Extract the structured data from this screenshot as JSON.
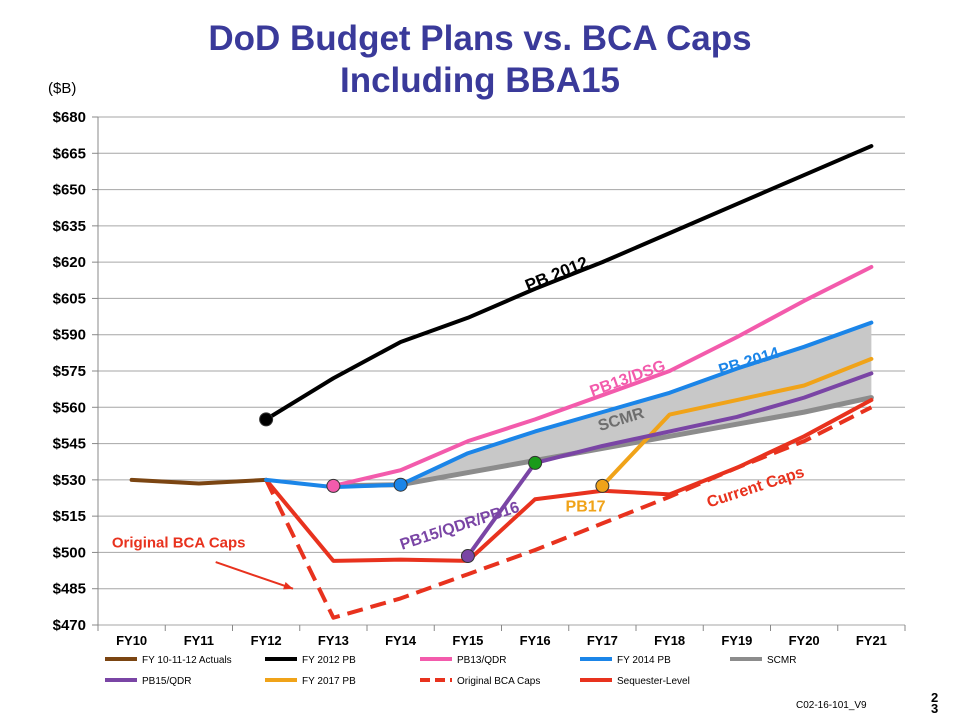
{
  "title_line1": "DoD Budget Plans vs. BCA Caps",
  "title_line2": "Including BBA15",
  "unit_label": "($B)",
  "footer_code": "C02-16-101_V9",
  "page_number": "2 3",
  "chart_data": {
    "type": "line",
    "categories": [
      "FY10",
      "FY11",
      "FY12",
      "FY13",
      "FY14",
      "FY15",
      "FY16",
      "FY17",
      "FY18",
      "FY19",
      "FY20",
      "FY21"
    ],
    "y_ticks": [
      "$680",
      "$665",
      "$650",
      "$635",
      "$620",
      "$605",
      "$590",
      "$575",
      "$560",
      "$545",
      "$530",
      "$515",
      "$500",
      "$485",
      "$470"
    ],
    "ylim": [
      470,
      680
    ],
    "grid": true,
    "legend_position": "bottom",
    "series": [
      {
        "key": "scmr",
        "name": "SCMR",
        "color": "#8c8c8c",
        "width": 5,
        "dashed": false,
        "x": [
          3,
          4,
          5,
          6,
          7,
          8,
          9,
          10,
          11
        ],
        "values": [
          527.5,
          528,
          533,
          538,
          543,
          548,
          553,
          558,
          564
        ]
      },
      {
        "key": "pb17",
        "name": "FY 2017 PB",
        "color": "#f0a319",
        "width": 4,
        "dashed": false,
        "x": [
          7,
          8,
          9,
          10,
          11
        ],
        "values": [
          527.5,
          557,
          563,
          569,
          580
        ]
      },
      {
        "key": "pb15",
        "name": "PB15/QDR",
        "color": "#7a45a5",
        "width": 4,
        "dashed": false,
        "x": [
          5,
          6,
          7,
          8,
          9,
          10,
          11
        ],
        "values": [
          498.5,
          537,
          544,
          550,
          556,
          564,
          574
        ]
      },
      {
        "key": "bca",
        "name": "Original BCA Caps",
        "color": "#e8321e",
        "width": 4,
        "dashed": true,
        "x": [
          2,
          3,
          4,
          5,
          6,
          7,
          8,
          9,
          10,
          11
        ],
        "values": [
          530,
          473,
          481,
          491,
          501,
          512,
          523,
          535,
          546,
          560
        ]
      },
      {
        "key": "seq",
        "name": "Sequester-Level",
        "color": "#e8321e",
        "width": 4,
        "dashed": false,
        "x": [
          2,
          3,
          4,
          5,
          6,
          7,
          8,
          9,
          10,
          11
        ],
        "values": [
          530,
          496.5,
          497,
          496.5,
          522,
          525.5,
          524,
          535,
          548,
          563
        ]
      },
      {
        "key": "actuals",
        "name": "FY 10-11-12 Actuals",
        "color": "#7b4512",
        "width": 4,
        "dashed": false,
        "x": [
          0,
          1,
          2
        ],
        "values": [
          530,
          528.5,
          530
        ]
      },
      {
        "key": "pb13",
        "name": "PB13/QDR",
        "color": "#f35bac",
        "width": 4,
        "dashed": false,
        "x": [
          3,
          4,
          5,
          6,
          7,
          8,
          9,
          10,
          11
        ],
        "values": [
          527.5,
          534,
          546,
          555,
          565,
          575,
          589,
          604,
          618
        ]
      },
      {
        "key": "pb14",
        "name": "FY 2014 PB",
        "color": "#1b85e8",
        "width": 4,
        "dashed": false,
        "x": [
          2,
          3,
          4,
          5,
          6,
          7,
          8,
          9,
          10,
          11
        ],
        "values": [
          530,
          527,
          528,
          541,
          550,
          558,
          566,
          576,
          585,
          595
        ]
      },
      {
        "key": "pb12",
        "name": "FY 2012 PB",
        "color": "#000000",
        "width": 4,
        "dashed": false,
        "x": [
          2,
          3,
          4,
          5,
          6,
          7,
          8,
          9,
          10,
          11
        ],
        "values": [
          555,
          572,
          587,
          597,
          609,
          620,
          632,
          644,
          656,
          668
        ]
      }
    ],
    "shaded_band": {
      "color": "#c8c8c8",
      "between": [
        "pb14",
        "scmr"
      ]
    },
    "markers": [
      {
        "series": "pb12",
        "x": 2,
        "y": 555,
        "color": "#000000"
      },
      {
        "series": "pb13",
        "x": 3,
        "y": 527.5,
        "color": "#f35bac"
      },
      {
        "series": "pb14",
        "x": 4,
        "y": 528,
        "color": "#1b85e8"
      },
      {
        "series": "pb15",
        "x": 5,
        "y": 498.5,
        "color": "#7a45a5"
      },
      {
        "series": "pb16",
        "x": 6,
        "y": 537,
        "color": "#1a9b1a"
      },
      {
        "series": "pb17",
        "x": 7,
        "y": 527.5,
        "color": "#f0a319"
      }
    ],
    "annotations": [
      {
        "text": "PB 2012",
        "x": 6.35,
        "y": 613,
        "color": "#000000",
        "rotate": -22,
        "size": 17
      },
      {
        "text": "PB13/DSG",
        "x": 7.4,
        "y": 570,
        "color": "#f35bac",
        "rotate": -20,
        "size": 16
      },
      {
        "text": "PB 2014",
        "x": 9.2,
        "y": 577,
        "color": "#1b85e8",
        "rotate": -17,
        "size": 16
      },
      {
        "text": "SCMR",
        "x": 7.3,
        "y": 553,
        "color": "#6e6e6e",
        "rotate": -17,
        "size": 16
      },
      {
        "text": "PB15/QDR/PB16",
        "x": 4.9,
        "y": 509,
        "color": "#7a45a5",
        "rotate": -18,
        "size": 16
      },
      {
        "text": "PB17",
        "x": 6.75,
        "y": 517,
        "color": "#f0a319",
        "rotate": 0,
        "size": 16
      },
      {
        "text": "Current Caps",
        "x": 9.3,
        "y": 525,
        "color": "#e8321e",
        "rotate": -18,
        "size": 16
      },
      {
        "text": "Original BCA Caps",
        "x": 0.7,
        "y": 502,
        "color": "#e8321e",
        "rotate": 0,
        "size": 15
      }
    ],
    "legend": [
      {
        "label": "FY 10-11-12 Actuals",
        "color": "#7b4512",
        "dashed": false
      },
      {
        "label": "FY 2012 PB",
        "color": "#000000",
        "dashed": false
      },
      {
        "label": "PB13/QDR",
        "color": "#f35bac",
        "dashed": false
      },
      {
        "label": "FY 2014 PB",
        "color": "#1b85e8",
        "dashed": false
      },
      {
        "label": "SCMR",
        "color": "#8c8c8c",
        "dashed": false
      },
      {
        "label": "PB15/QDR",
        "color": "#7a45a5",
        "dashed": false
      },
      {
        "label": "FY 2017 PB",
        "color": "#f0a319",
        "dashed": false
      },
      {
        "label": "Original BCA Caps",
        "color": "#e8321e",
        "dashed": true
      },
      {
        "label": "Sequester-Level",
        "color": "#e8321e",
        "dashed": false
      }
    ]
  }
}
